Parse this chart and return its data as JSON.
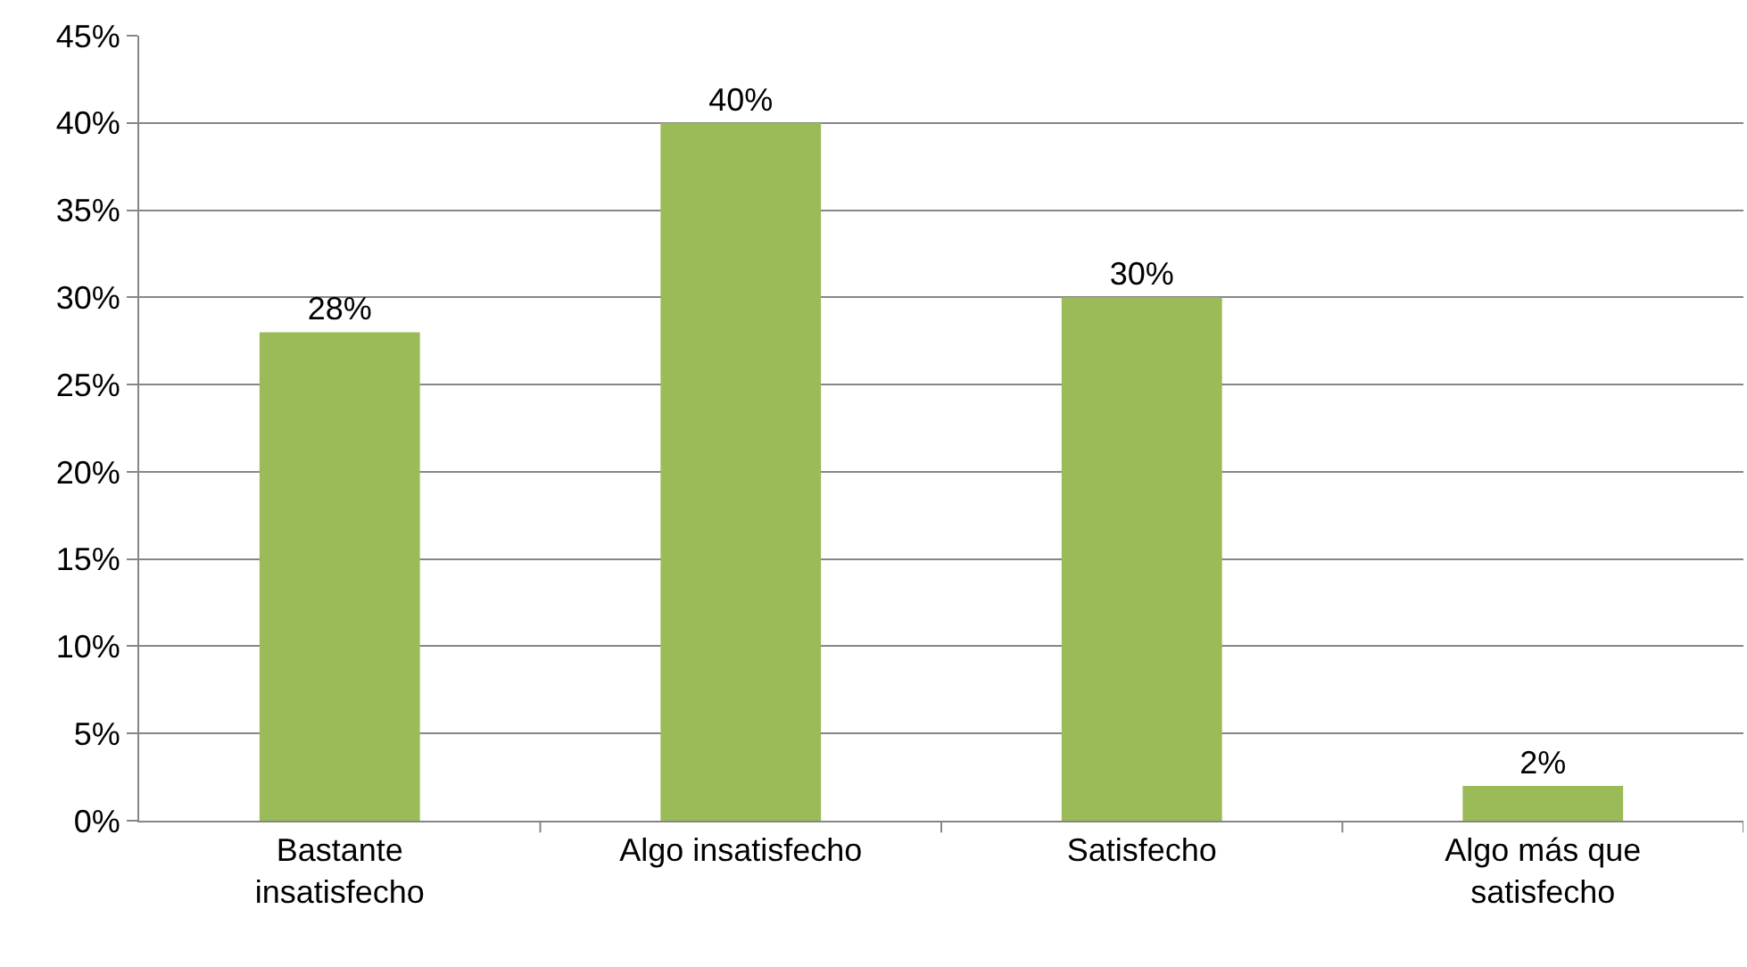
{
  "chart_data": {
    "type": "bar",
    "categories": [
      "Bastante insatisfecho",
      "Algo insatisfecho",
      "Satisfecho",
      "Algo más que satisfecho"
    ],
    "values": [
      28,
      40,
      30,
      2
    ],
    "value_labels": [
      "28%",
      "40%",
      "30%",
      "2%"
    ],
    "color": "#9bbb59",
    "ylim": [
      0,
      45
    ],
    "yticks": [
      {
        "value": 0,
        "label": "0%"
      },
      {
        "value": 5,
        "label": "5%"
      },
      {
        "value": 10,
        "label": "10%"
      },
      {
        "value": 15,
        "label": "15%"
      },
      {
        "value": 20,
        "label": "20%"
      },
      {
        "value": 25,
        "label": "25%"
      },
      {
        "value": 30,
        "label": "30%"
      },
      {
        "value": 35,
        "label": "35%"
      },
      {
        "value": 40,
        "label": "40%"
      },
      {
        "value": 45,
        "label": "45%"
      }
    ],
    "grid": "y"
  }
}
